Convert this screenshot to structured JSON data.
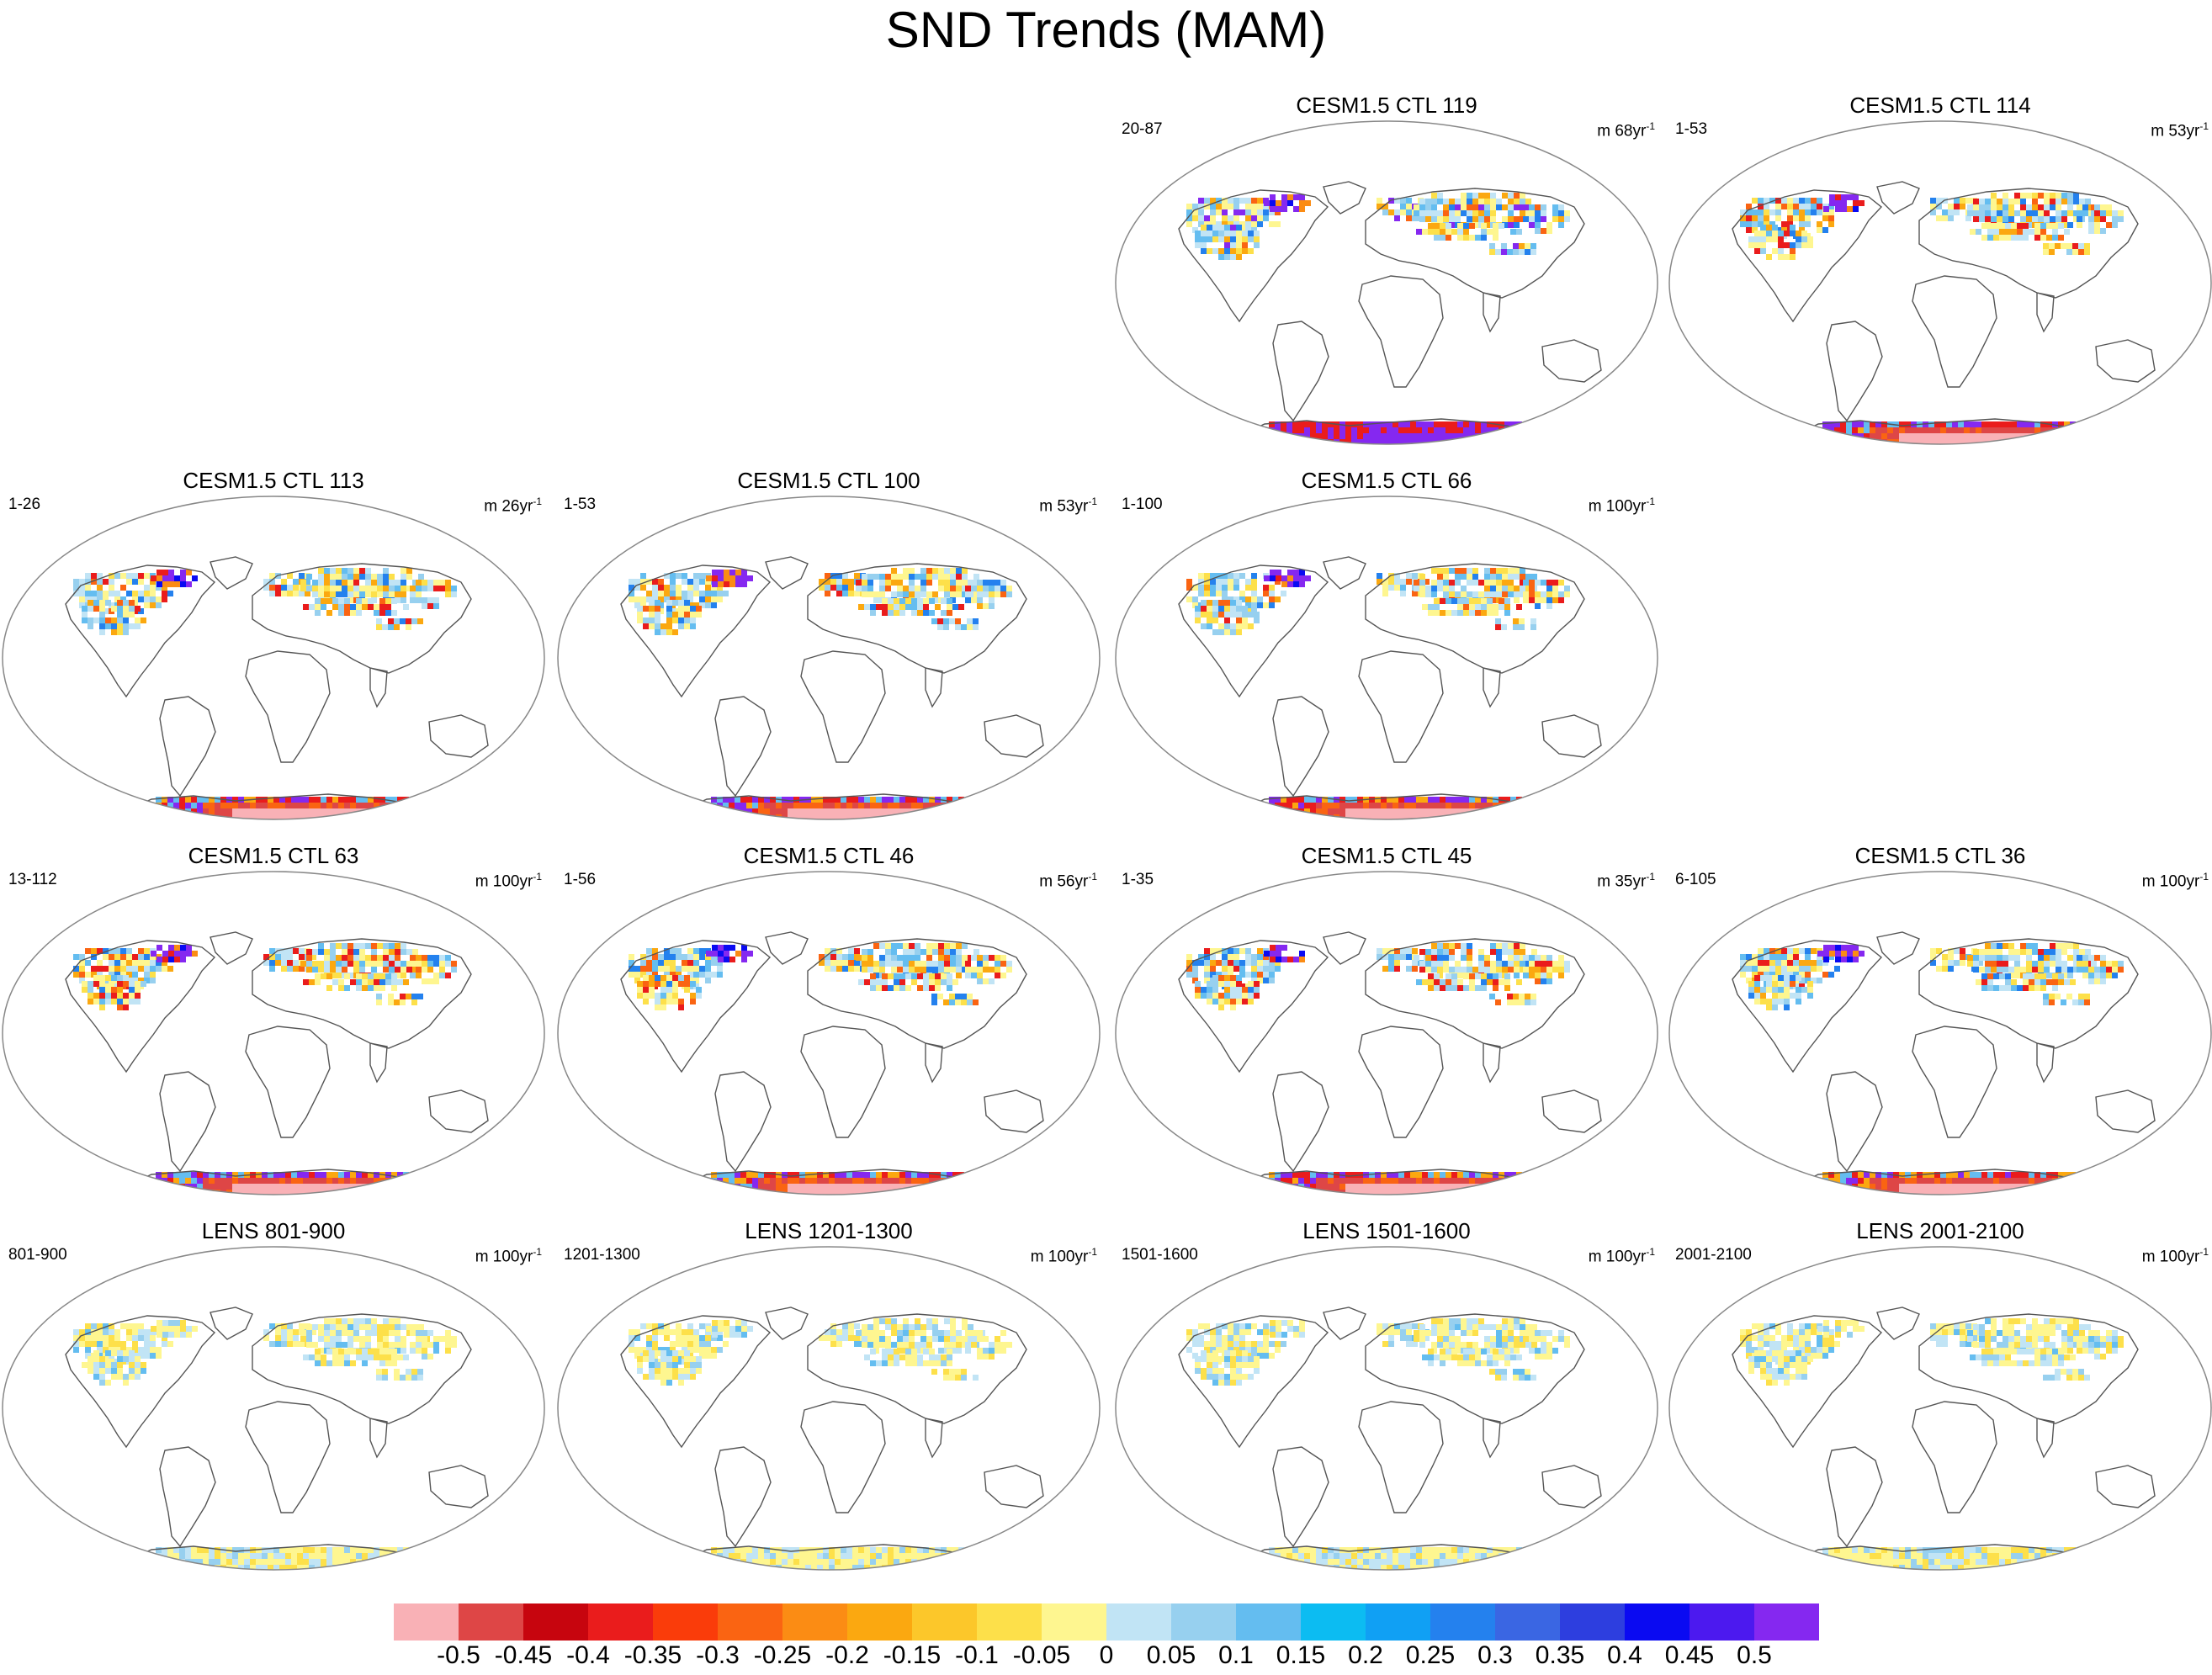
{
  "figure": {
    "title": "SND Trends (MAM)"
  },
  "colors": {
    "levels": [
      "#f9b1b6",
      "#de4646",
      "#c7050e",
      "#ea1c1c",
      "#fa3c0a",
      "#fa6412",
      "#fb8c14",
      "#fba810",
      "#fcc72a",
      "#fde04a",
      "#fef690",
      "#c1e4f5",
      "#97d0ef",
      "#64bdf0",
      "#0cbcf2",
      "#10a0f4",
      "#2481ee",
      "#3a66e3",
      "#2d3edf",
      "#0a0af2",
      "#4c19ef",
      "#8528f0"
    ],
    "coast": "#555555",
    "border": "#888888"
  },
  "chart_data": {
    "type": "heatmap",
    "variable": "SND",
    "season": "MAM",
    "colorbar": {
      "ticks": [
        "-0.5",
        "-0.45",
        "-0.4",
        "-0.35",
        "-0.3",
        "-0.25",
        "-0.2",
        "-0.15",
        "-0.1",
        "-0.05",
        "0",
        "0.05",
        "0.1",
        "0.15",
        "0.2",
        "0.25",
        "0.3",
        "0.35",
        "0.4",
        "0.45",
        "0.5"
      ],
      "min": -0.5,
      "max": 0.5,
      "step": 0.05
    },
    "panels": [
      {
        "title": "CESM1.5 CTL 119",
        "range": "20-87",
        "unit": "m 68yr",
        "unit_exp": "-1",
        "mode": 2
      },
      {
        "title": "CESM1.5 CTL 114",
        "range": "1-53",
        "unit": "m 53yr",
        "unit_exp": "-1",
        "mode": 1
      },
      {
        "title": "CESM1.5 CTL 113",
        "range": "1-26",
        "unit": "m 26yr",
        "unit_exp": "-1",
        "mode": 1
      },
      {
        "title": "CESM1.5 CTL 100",
        "range": "1-53",
        "unit": "m 53yr",
        "unit_exp": "-1",
        "mode": 1
      },
      {
        "title": "CESM1.5 CTL 66",
        "range": "1-100",
        "unit": "m 100yr",
        "unit_exp": "-1",
        "mode": 1
      },
      {
        "title": "CESM1.5 CTL 63",
        "range": "13-112",
        "unit": "m 100yr",
        "unit_exp": "-1",
        "mode": 1
      },
      {
        "title": "CESM1.5 CTL 46",
        "range": "1-56",
        "unit": "m 56yr",
        "unit_exp": "-1",
        "mode": 1
      },
      {
        "title": "CESM1.5 CTL 45",
        "range": "1-35",
        "unit": "m 35yr",
        "unit_exp": "-1",
        "mode": 1
      },
      {
        "title": "CESM1.5 CTL 36",
        "range": "6-105",
        "unit": "m 100yr",
        "unit_exp": "-1",
        "mode": 1
      },
      {
        "title": "LENS 801-900",
        "range": "801-900",
        "unit": "m 100yr",
        "unit_exp": "-1",
        "mode": 0
      },
      {
        "title": "LENS 1201-1300",
        "range": "1201-1300",
        "unit": "m 100yr",
        "unit_exp": "-1",
        "mode": 0
      },
      {
        "title": "LENS 1501-1600",
        "range": "1501-1600",
        "unit": "m 100yr",
        "unit_exp": "-1",
        "mode": 0
      },
      {
        "title": "LENS 2001-2100",
        "range": "2001-2100",
        "unit": "m 100yr",
        "unit_exp": "-1",
        "mode": 0
      }
    ]
  }
}
